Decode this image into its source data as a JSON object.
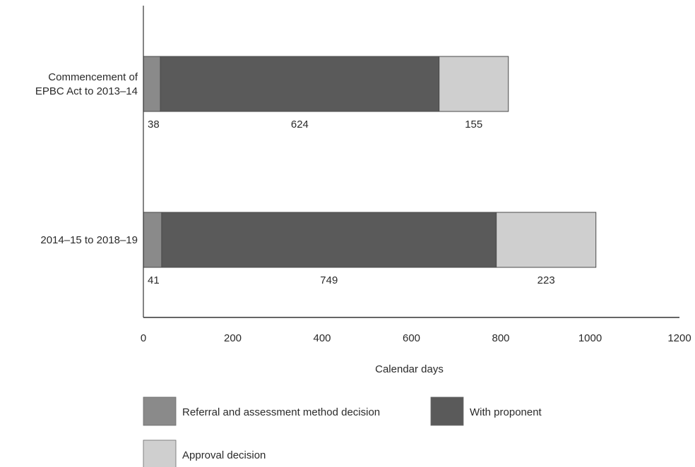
{
  "chart_data": {
    "type": "bar",
    "orientation": "horizontal",
    "stacked": true,
    "categories": [
      "Commencement of EPBC Act to 2013–14",
      "2014–15 to 2018–19"
    ],
    "category_lines": [
      [
        "Commencement of",
        "EPBC Act to 2013–14"
      ],
      [
        "2014–15 to 2018–19"
      ]
    ],
    "series": [
      {
        "name": "Referral and assessment method decision",
        "values": [
          38,
          41
        ],
        "color": "#8a8a8a"
      },
      {
        "name": "With proponent",
        "values": [
          624,
          749
        ],
        "color": "#5a5a5a"
      },
      {
        "name": "Approval decision",
        "values": [
          155,
          223
        ],
        "color": "#cfcfcf"
      }
    ],
    "xlabel": "Calendar days",
    "xlim": [
      0,
      1200
    ],
    "xticks": [
      0,
      200,
      400,
      600,
      800,
      1000,
      1200
    ],
    "grid": false,
    "legend_position": "bottom",
    "data_labels": "below bars"
  }
}
